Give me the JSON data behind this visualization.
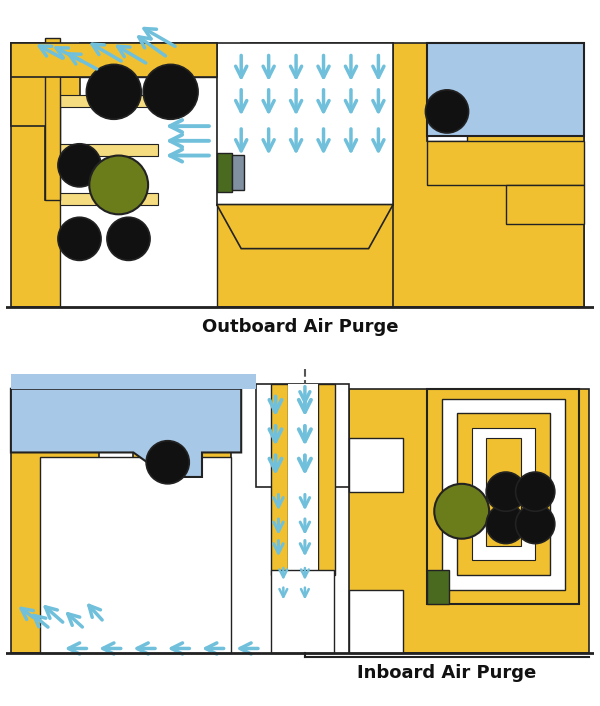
{
  "title1": "Outboard Air Purge",
  "title2": "Inboard Air Purge",
  "yellow": "#F0C030",
  "yellow_light": "#F5DC80",
  "blue_light": "#A8C8E8",
  "blue_arrow": "#70C0DC",
  "black": "#111111",
  "olive": "#6B7C1A",
  "white": "#FFFFFF",
  "green_rect": "#4A6A20",
  "gray_rect": "#8090A0",
  "bg": "#FFFFFF",
  "border": "#222222"
}
